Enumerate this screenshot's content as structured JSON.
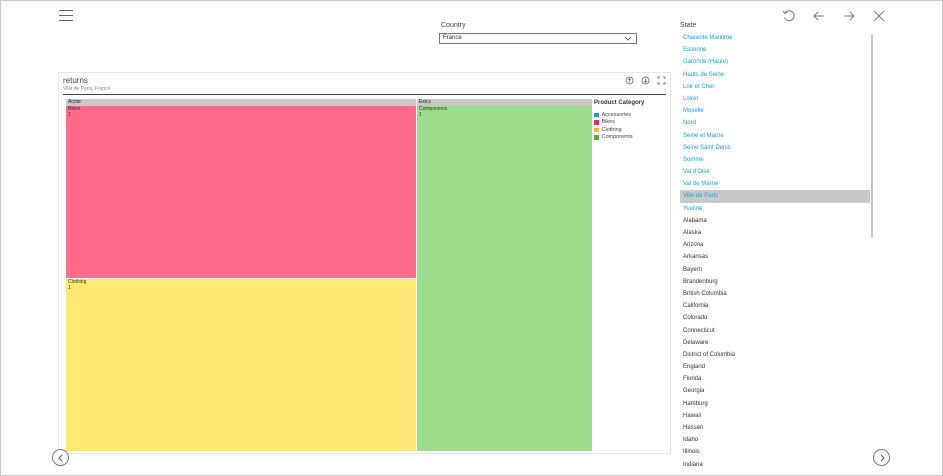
{
  "country": {
    "label": "Country",
    "selected": "France"
  },
  "state": {
    "label": "State",
    "items": [
      {
        "name": "Charente Maritime",
        "style": "blue"
      },
      {
        "name": "Essonne",
        "style": "blue"
      },
      {
        "name": "Garonne (Haute)",
        "style": "blue"
      },
      {
        "name": "Hauts de Seine",
        "style": "blue"
      },
      {
        "name": "Loir et Cher",
        "style": "blue"
      },
      {
        "name": "Loiret",
        "style": "blue"
      },
      {
        "name": "Moselle",
        "style": "blue"
      },
      {
        "name": "Nord",
        "style": "blue"
      },
      {
        "name": "Seine et Marne",
        "style": "blue"
      },
      {
        "name": "Seine Saint Denis",
        "style": "blue"
      },
      {
        "name": "Somme",
        "style": "blue"
      },
      {
        "name": "Val d'Oise",
        "style": "blue"
      },
      {
        "name": "Val de Marne",
        "style": "blue"
      },
      {
        "name": "Ville de Paris",
        "style": "selected"
      },
      {
        "name": "Yveline",
        "style": "blue"
      },
      {
        "name": "Alabama",
        "style": "dark"
      },
      {
        "name": "Alaska",
        "style": "dark"
      },
      {
        "name": "Arizona",
        "style": "dark"
      },
      {
        "name": "Arkansas",
        "style": "dark"
      },
      {
        "name": "Bayern",
        "style": "dark"
      },
      {
        "name": "Brandenburg",
        "style": "dark"
      },
      {
        "name": "British Columbia",
        "style": "dark"
      },
      {
        "name": "California",
        "style": "dark"
      },
      {
        "name": "Colorado",
        "style": "dark"
      },
      {
        "name": "Connecticut",
        "style": "dark"
      },
      {
        "name": "Delaware",
        "style": "dark"
      },
      {
        "name": "District of Columbia",
        "style": "dark"
      },
      {
        "name": "England",
        "style": "dark"
      },
      {
        "name": "Florida",
        "style": "dark"
      },
      {
        "name": "Georgia",
        "style": "dark"
      },
      {
        "name": "Hamburg",
        "style": "dark"
      },
      {
        "name": "Hawaii",
        "style": "dark"
      },
      {
        "name": "Hessen",
        "style": "dark"
      },
      {
        "name": "Idaho",
        "style": "dark"
      },
      {
        "name": "Illinois",
        "style": "dark"
      },
      {
        "name": "Indiana",
        "style": "dark"
      }
    ]
  },
  "visual": {
    "title": "returns",
    "subtitle": "Ville de Paris, France"
  },
  "chart_data": {
    "type": "treemap",
    "groups": [
      {
        "name": "Acme",
        "cells": [
          {
            "category": "Bikes",
            "value": 1,
            "color": "#ff6b8a"
          },
          {
            "category": "Clothing",
            "value": 1,
            "color": "#ffe873"
          }
        ]
      },
      {
        "name": "Esics",
        "cells": [
          {
            "category": "Components",
            "value": 1,
            "color": "#a0dc8e"
          }
        ]
      }
    ],
    "legend": {
      "title": "Product Category",
      "items": [
        {
          "name": "Accessories",
          "color": "#1f9bd7"
        },
        {
          "name": "Bikes",
          "color": "#e0325a"
        },
        {
          "name": "Clothing",
          "color": "#f5b82e"
        },
        {
          "name": "Components",
          "color": "#5aa845"
        }
      ]
    }
  }
}
